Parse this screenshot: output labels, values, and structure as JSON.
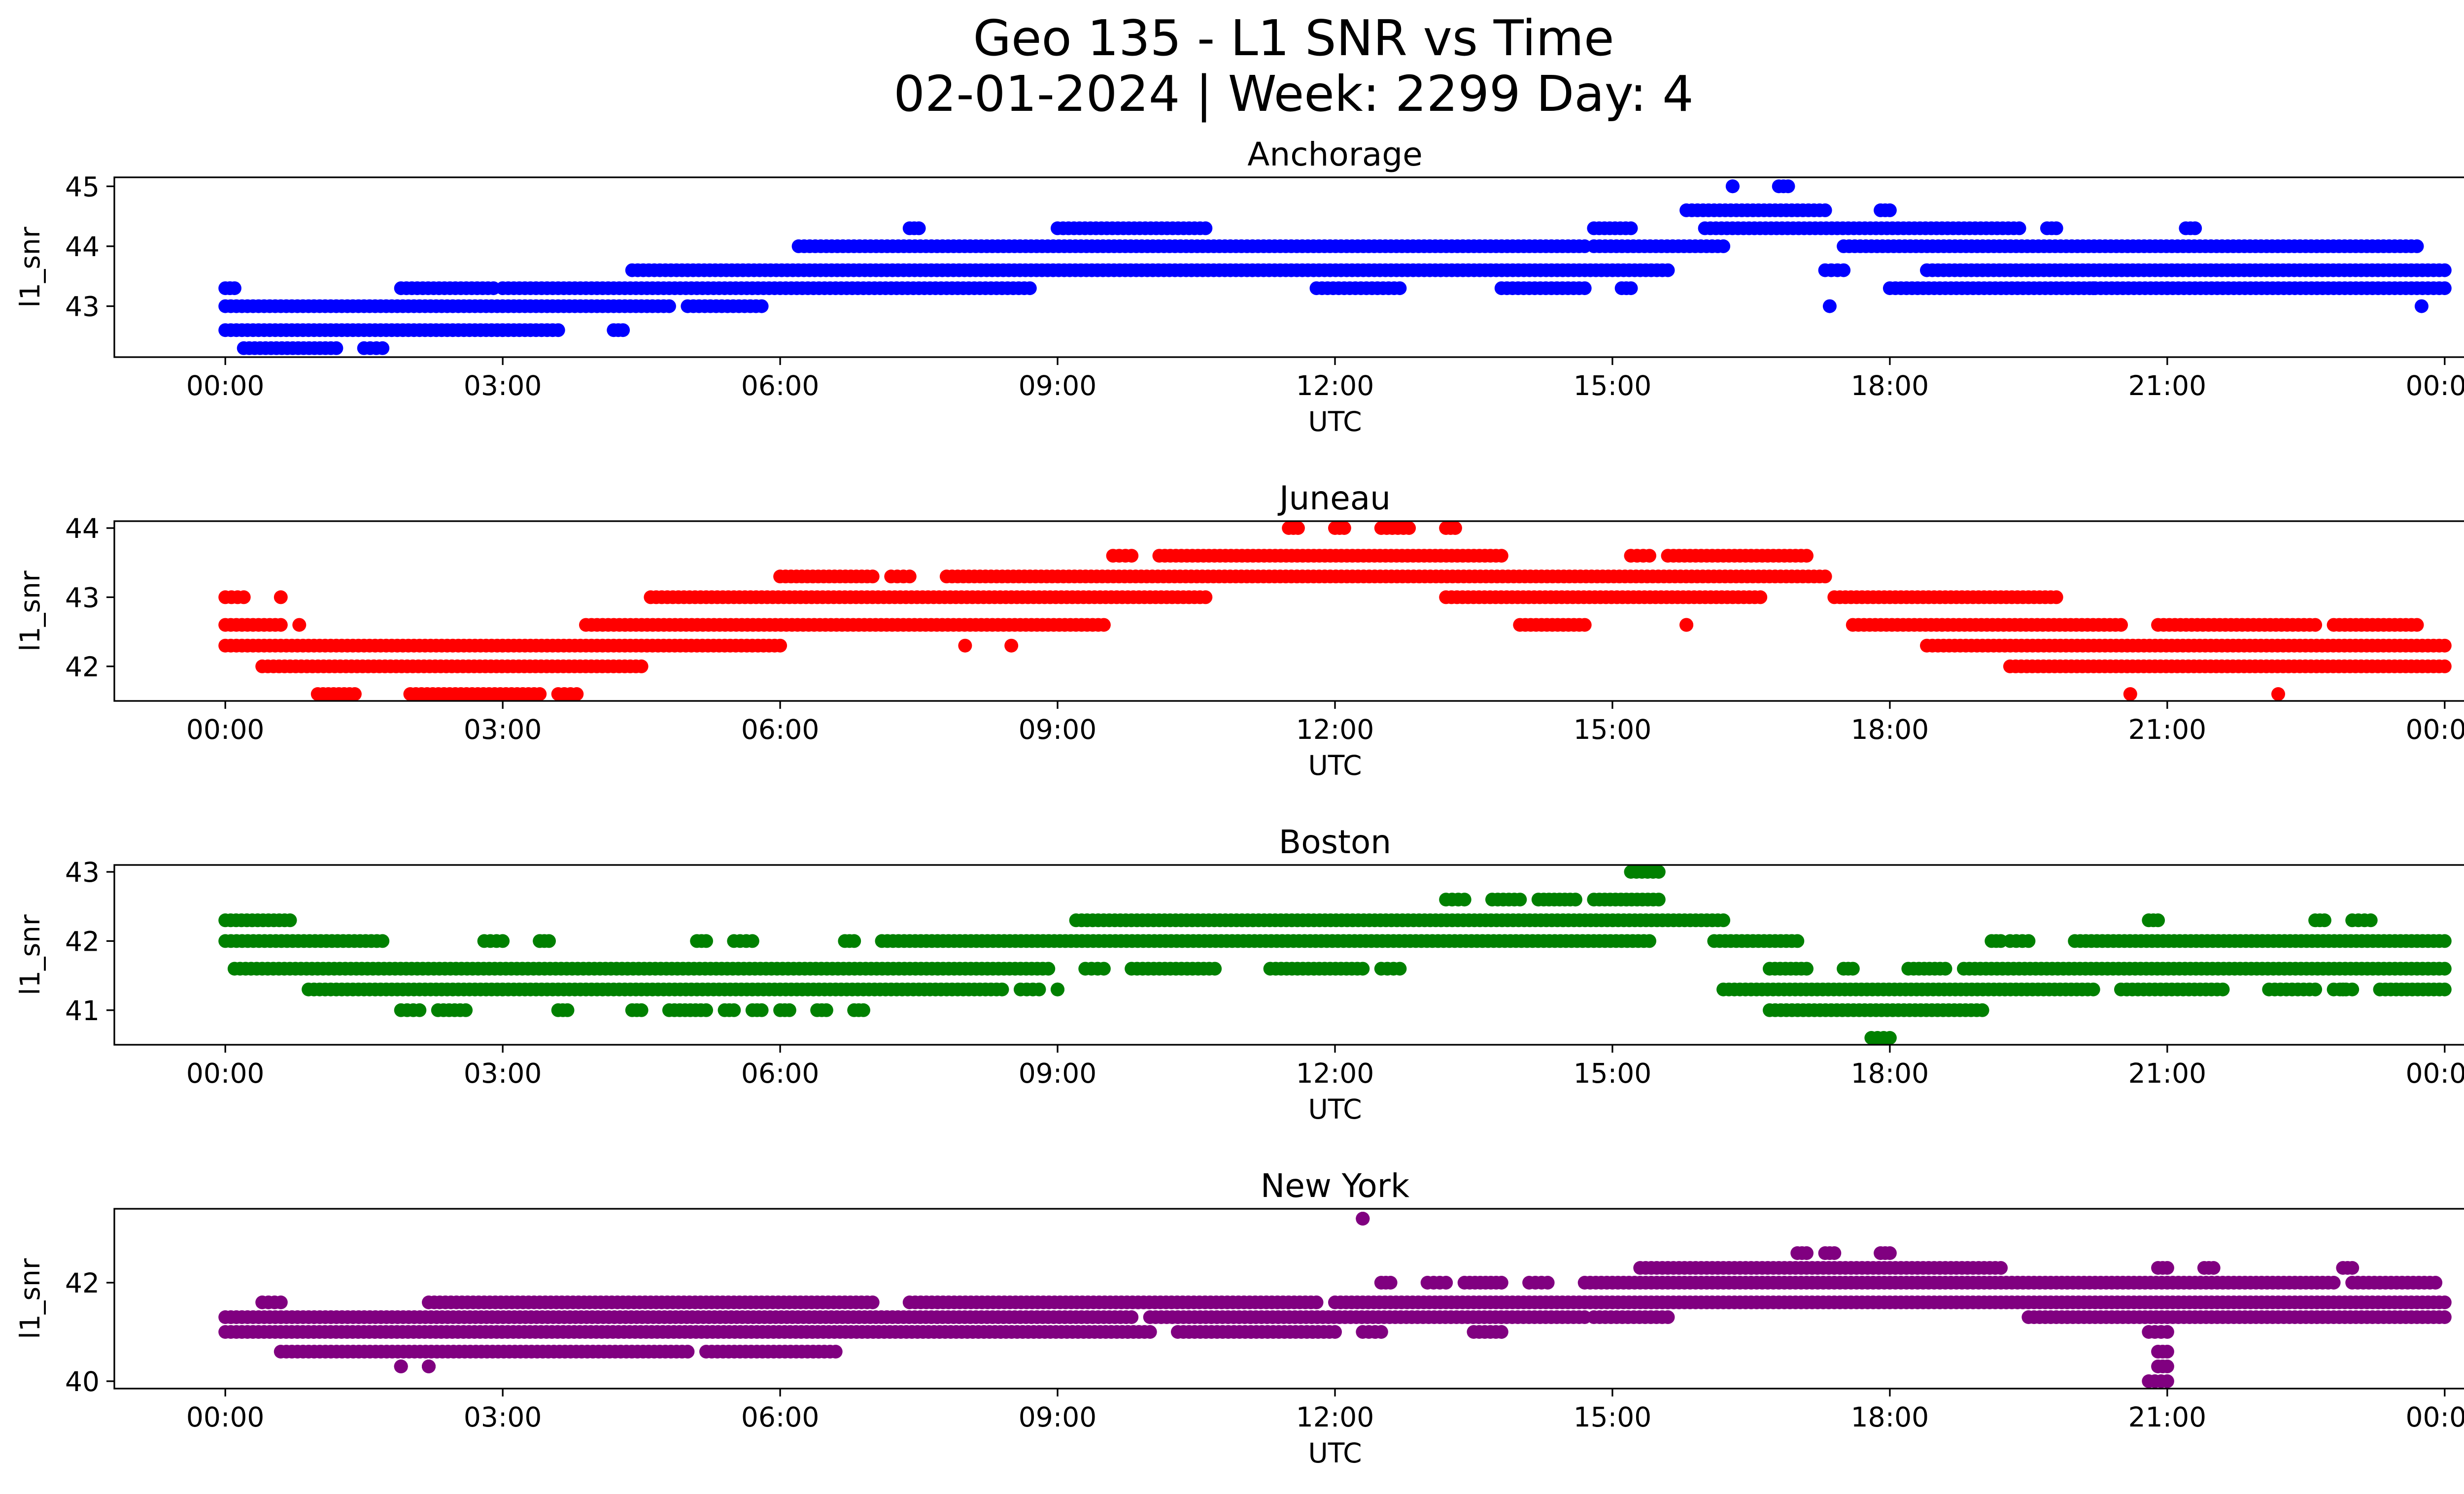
{
  "figure": {
    "title_line1": "Geo 135 - L1 SNR vs Time",
    "title_line2": "02-01-2024 | Week: 2299 Day: 4"
  },
  "chart_data": [
    {
      "type": "scatter",
      "title": "Anchorage",
      "xlabel": "UTC",
      "ylabel": "l1_snr",
      "color": "#0000ff",
      "xticks": [
        "00:00",
        "03:00",
        "06:00",
        "09:00",
        "12:00",
        "15:00",
        "18:00",
        "21:00",
        "00:00"
      ],
      "xlim_hours": [
        -1.2,
        25.2
      ],
      "yticks": [
        43,
        44,
        45
      ],
      "ylim": [
        42.15,
        45.15
      ],
      "series": [
        {
          "points_desc": "SNR readings (dB-Hz) vs UTC hour, quantized levels",
          "bands": [
            {
              "y": 42.3,
              "segments": [
                [
                  0.2,
                  1.2
                ],
                [
                  1.5,
                  1.7
                ]
              ]
            },
            {
              "y": 42.6,
              "segments": [
                [
                  0.0,
                  3.6
                ],
                [
                  4.2,
                  4.3
                ]
              ]
            },
            {
              "y": 43.0,
              "segments": [
                [
                  0.0,
                  4.8
                ],
                [
                  5.0,
                  5.8
                ]
              ]
            },
            {
              "y": 43.3,
              "segments": [
                [
                  0.0,
                  0.1
                ],
                [
                  1.9,
                  2.9
                ],
                [
                  3.0,
                  8.7
                ],
                [
                  11.8,
                  12.7
                ],
                [
                  13.8,
                  14.7
                ],
                [
                  15.1,
                  15.2
                ],
                [
                  18.0,
                  24.0
                ]
              ]
            },
            {
              "y": 43.6,
              "segments": [
                [
                  4.4,
                  15.6
                ],
                [
                  17.3,
                  17.5
                ],
                [
                  18.4,
                  24.0
                ]
              ]
            },
            {
              "y": 44.0,
              "segments": [
                [
                  6.2,
                  14.7
                ],
                [
                  14.8,
                  16.2
                ],
                [
                  17.5,
                  23.7
                ]
              ]
            },
            {
              "y": 44.3,
              "segments": [
                [
                  7.4,
                  7.5
                ],
                [
                  9.0,
                  10.6
                ],
                [
                  14.8,
                  15.2
                ],
                [
                  16.0,
                  19.4
                ],
                [
                  19.7,
                  19.8
                ],
                [
                  21.2,
                  21.3
                ]
              ]
            },
            {
              "y": 44.6,
              "segments": [
                [
                  15.8,
                  17.3
                ],
                [
                  17.9,
                  18.0
                ]
              ]
            },
            {
              "y": 45.0,
              "segments": [
                [
                  16.3,
                  16.3
                ],
                [
                  16.8,
                  16.9
                ]
              ]
            }
          ],
          "outliers": [
            [
              0.05,
              43.3
            ],
            [
              17.35,
              43.0
            ],
            [
              23.75,
              43.0
            ],
            [
              20.2,
              43.3
            ],
            [
              21.0,
              43.3
            ]
          ]
        }
      ]
    },
    {
      "type": "scatter",
      "title": "Juneau",
      "xlabel": "UTC",
      "ylabel": "l1_snr",
      "color": "#ff0000",
      "xticks": [
        "00:00",
        "03:00",
        "06:00",
        "09:00",
        "12:00",
        "15:00",
        "18:00",
        "21:00",
        "00:00"
      ],
      "xlim_hours": [
        -1.2,
        25.2
      ],
      "yticks": [
        42,
        43,
        44
      ],
      "ylim": [
        41.5,
        44.1
      ],
      "series": [
        {
          "points_desc": "SNR readings (dB-Hz) vs UTC hour, quantized levels",
          "bands": [
            {
              "y": 41.6,
              "segments": [
                [
                  1.0,
                  1.4
                ],
                [
                  2.0,
                  3.4
                ],
                [
                  3.6,
                  3.8
                ]
              ]
            },
            {
              "y": 42.0,
              "segments": [
                [
                  0.4,
                  4.5
                ],
                [
                  19.3,
                  24.0
                ]
              ]
            },
            {
              "y": 42.3,
              "segments": [
                [
                  0.0,
                  6.0
                ],
                [
                  18.4,
                  24.0
                ]
              ]
            },
            {
              "y": 42.6,
              "segments": [
                [
                  0.0,
                  0.6
                ],
                [
                  3.9,
                  9.5
                ],
                [
                  14.0,
                  14.7
                ],
                [
                  15.8,
                  15.8
                ],
                [
                  17.6,
                  20.5
                ],
                [
                  20.9,
                  22.6
                ],
                [
                  22.8,
                  23.7
                ]
              ]
            },
            {
              "y": 43.0,
              "segments": [
                [
                  0.0,
                  0.2
                ],
                [
                  4.6,
                  10.6
                ],
                [
                  13.2,
                  16.6
                ],
                [
                  17.4,
                  19.8
                ]
              ]
            },
            {
              "y": 43.3,
              "segments": [
                [
                  6.0,
                  7.0
                ],
                [
                  7.2,
                  7.4
                ],
                [
                  7.8,
                  17.3
                ]
              ]
            },
            {
              "y": 43.6,
              "segments": [
                [
                  9.6,
                  9.8
                ],
                [
                  10.1,
                  13.8
                ],
                [
                  15.2,
                  15.4
                ],
                [
                  15.6,
                  17.1
                ]
              ]
            },
            {
              "y": 44.0,
              "segments": [
                [
                  11.5,
                  11.6
                ],
                [
                  12.0,
                  12.1
                ],
                [
                  12.5,
                  12.8
                ],
                [
                  13.2,
                  13.3
                ]
              ]
            }
          ],
          "outliers": [
            [
              8.0,
              42.3
            ],
            [
              8.5,
              42.3
            ],
            [
              20.6,
              41.6
            ],
            [
              22.2,
              41.6
            ],
            [
              0.8,
              42.6
            ],
            [
              0.6,
              43.0
            ]
          ]
        }
      ]
    },
    {
      "type": "scatter",
      "title": "Boston",
      "xlabel": "UTC",
      "ylabel": "l1_snr",
      "color": "#008000",
      "xticks": [
        "00:00",
        "03:00",
        "06:00",
        "09:00",
        "12:00",
        "15:00",
        "18:00",
        "21:00",
        "00:00"
      ],
      "xlim_hours": [
        -1.2,
        25.2
      ],
      "yticks": [
        41,
        42,
        43
      ],
      "ylim": [
        40.5,
        43.1
      ],
      "series": [
        {
          "points_desc": "SNR readings (dB-Hz) vs UTC hour, quantized levels",
          "bands": [
            {
              "y": 40.6,
              "segments": [
                [
                  17.8,
                  18.0
                ]
              ]
            },
            {
              "y": 41.0,
              "segments": [
                [
                  1.9,
                  2.1
                ],
                [
                  2.3,
                  2.6
                ],
                [
                  3.6,
                  3.7
                ],
                [
                  4.4,
                  4.5
                ],
                [
                  4.8,
                  5.2
                ],
                [
                  5.4,
                  5.5
                ],
                [
                  5.7,
                  5.8
                ],
                [
                  6.0,
                  6.1
                ],
                [
                  6.4,
                  6.5
                ],
                [
                  6.8,
                  6.9
                ],
                [
                  16.7,
                  19.0
                ]
              ]
            },
            {
              "y": 41.3,
              "segments": [
                [
                  0.9,
                  8.4
                ],
                [
                  8.6,
                  8.8
                ],
                [
                  9.0,
                  9.0
                ],
                [
                  16.2,
                  20.2
                ],
                [
                  20.5,
                  21.6
                ],
                [
                  22.1,
                  22.6
                ],
                [
                  22.8,
                  23.0
                ],
                [
                  23.3,
                  24.0
                ]
              ]
            },
            {
              "y": 41.6,
              "segments": [
                [
                  0.1,
                  8.9
                ],
                [
                  9.3,
                  9.5
                ],
                [
                  9.8,
                  10.7
                ],
                [
                  11.3,
                  12.3
                ],
                [
                  12.5,
                  12.7
                ],
                [
                  16.7,
                  17.1
                ],
                [
                  17.5,
                  17.6
                ],
                [
                  18.2,
                  18.6
                ],
                [
                  18.8,
                  24.0
                ]
              ]
            },
            {
              "y": 42.0,
              "segments": [
                [
                  0.0,
                  1.7
                ],
                [
                  2.8,
                  3.0
                ],
                [
                  3.4,
                  3.5
                ],
                [
                  5.1,
                  5.2
                ],
                [
                  5.5,
                  5.7
                ],
                [
                  6.7,
                  6.8
                ],
                [
                  7.1,
                  15.4
                ],
                [
                  16.1,
                  17.0
                ],
                [
                  19.1,
                  19.2
                ],
                [
                  19.3,
                  19.5
                ],
                [
                  20.0,
                  24.0
                ]
              ]
            },
            {
              "y": 42.3,
              "segments": [
                [
                  0.0,
                  0.7
                ],
                [
                  9.2,
                  16.2
                ],
                [
                  20.8,
                  20.9
                ],
                [
                  22.6,
                  22.7
                ],
                [
                  23.0,
                  23.2
                ]
              ]
            },
            {
              "y": 42.6,
              "segments": [
                [
                  13.2,
                  13.4
                ],
                [
                  13.7,
                  14.0
                ],
                [
                  14.2,
                  14.6
                ],
                [
                  14.8,
                  15.5
                ]
              ]
            },
            {
              "y": 43.0,
              "segments": [
                [
                  15.2,
                  15.5
                ]
              ]
            }
          ],
          "outliers": [
            [
              3.4,
              42.0
            ],
            [
              22.9,
              41.3
            ]
          ]
        }
      ]
    },
    {
      "type": "scatter",
      "title": "New York",
      "xlabel": "UTC",
      "ylabel": "l1_snr",
      "color": "#800080",
      "xticks": [
        "00:00",
        "03:00",
        "06:00",
        "09:00",
        "12:00",
        "15:00",
        "18:00",
        "21:00",
        "00:00"
      ],
      "xlim_hours": [
        -1.2,
        25.2
      ],
      "yticks": [
        40,
        42
      ],
      "ylim": [
        39.85,
        43.5
      ],
      "series": [
        {
          "points_desc": "SNR readings (dB-Hz) vs UTC hour, quantized levels",
          "bands": [
            {
              "y": 40.0,
              "segments": [
                [
                  20.8,
                  21.0
                ]
              ]
            },
            {
              "y": 40.3,
              "segments": [
                [
                  1.9,
                  1.9
                ],
                [
                  2.2,
                  2.2
                ],
                [
                  20.9,
                  21.0
                ]
              ]
            },
            {
              "y": 40.6,
              "segments": [
                [
                  0.6,
                  5.0
                ],
                [
                  5.2,
                  6.6
                ],
                [
                  20.9,
                  21.0
                ]
              ]
            },
            {
              "y": 41.0,
              "segments": [
                [
                  0.0,
                  10.0
                ],
                [
                  10.3,
                  12.0
                ],
                [
                  12.3,
                  12.5
                ],
                [
                  13.5,
                  13.8
                ],
                [
                  20.8,
                  21.0
                ]
              ]
            },
            {
              "y": 41.3,
              "segments": [
                [
                  0.0,
                  9.8
                ],
                [
                  10.0,
                  14.7
                ],
                [
                  14.8,
                  15.6
                ],
                [
                  19.5,
                  24.0
                ]
              ]
            },
            {
              "y": 41.6,
              "segments": [
                [
                  0.4,
                  0.6
                ],
                [
                  2.2,
                  7.0
                ],
                [
                  7.4,
                  11.8
                ],
                [
                  12.0,
                  24.0
                ]
              ]
            },
            {
              "y": 42.0,
              "segments": [
                [
                  12.5,
                  12.6
                ],
                [
                  13.0,
                  13.2
                ],
                [
                  13.4,
                  13.8
                ],
                [
                  14.1,
                  14.3
                ],
                [
                  14.7,
                  22.8
                ],
                [
                  23.0,
                  23.9
                ]
              ]
            },
            {
              "y": 42.3,
              "segments": [
                [
                  15.3,
                  19.2
                ],
                [
                  20.9,
                  21.0
                ],
                [
                  21.4,
                  21.5
                ],
                [
                  22.9,
                  23.0
                ]
              ]
            },
            {
              "y": 42.6,
              "segments": [
                [
                  17.0,
                  17.1
                ],
                [
                  17.3,
                  17.4
                ],
                [
                  17.9,
                  18.0
                ]
              ]
            },
            {
              "y": 43.3,
              "segments": [
                [
                  12.3,
                  12.3
                ]
              ]
            }
          ],
          "outliers": [
            [
              1.9,
              40.3
            ],
            [
              2.2,
              40.3
            ],
            [
              12.3,
              43.3
            ]
          ]
        }
      ]
    }
  ]
}
